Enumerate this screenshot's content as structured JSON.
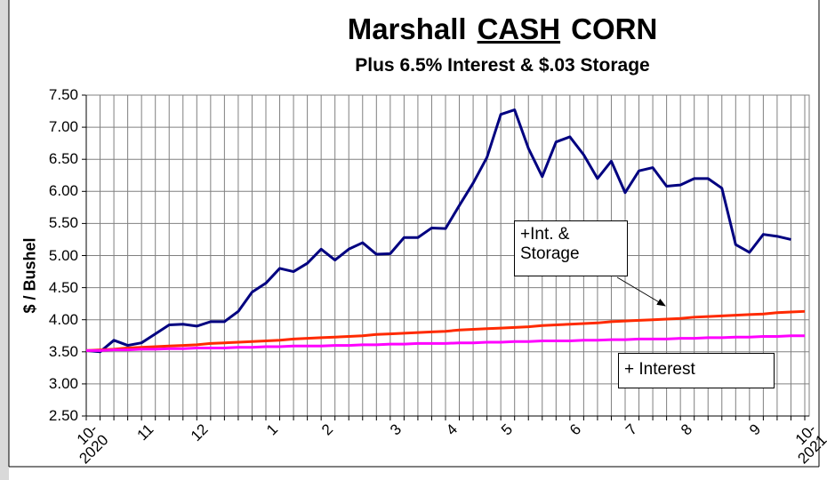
{
  "chart_data": {
    "type": "line",
    "title": [
      "Marshall",
      "CASH",
      "CORN"
    ],
    "subtitle": "Plus 6.5% Interest & $.03 Storage",
    "ylabel": "$ / Bushel",
    "annotations": [
      "+Int. &\nStorage",
      "+ Interest"
    ],
    "categories": [
      "10-\n2020",
      null,
      null,
      null,
      "11",
      null,
      null,
      null,
      "12",
      null,
      null,
      null,
      null,
      "1",
      null,
      null,
      null,
      "2",
      null,
      null,
      null,
      null,
      "3",
      null,
      null,
      null,
      "4",
      null,
      null,
      null,
      "5",
      null,
      null,
      null,
      null,
      "6",
      null,
      null,
      null,
      "7",
      null,
      null,
      null,
      "8",
      null,
      null,
      null,
      null,
      "9",
      null,
      null,
      null,
      "10-\n2021"
    ],
    "series": [
      {
        "color": "#000080",
        "values": [
          3.52,
          3.5,
          3.68,
          3.6,
          3.64,
          3.78,
          3.92,
          3.93,
          3.9,
          3.97,
          3.97,
          4.13,
          4.43,
          4.57,
          4.8,
          4.75,
          4.88,
          5.1,
          4.93,
          5.1,
          5.2,
          5.02,
          5.03,
          5.28,
          5.28,
          5.43,
          5.42,
          5.78,
          6.13,
          6.53,
          7.2,
          7.27,
          6.67,
          6.23,
          6.77,
          6.85,
          6.57,
          6.2,
          6.47,
          5.98,
          6.32,
          6.37,
          6.08,
          6.1,
          6.2,
          6.2,
          6.05,
          5.17,
          5.05,
          5.33,
          5.3,
          5.25,
          null
        ]
      },
      {
        "color": "#ff2a00",
        "values": [
          3.52,
          3.53,
          3.54,
          3.56,
          3.57,
          3.58,
          3.59,
          3.6,
          3.61,
          3.63,
          3.64,
          3.65,
          3.66,
          3.67,
          3.68,
          3.7,
          3.71,
          3.72,
          3.73,
          3.74,
          3.75,
          3.77,
          3.78,
          3.79,
          3.8,
          3.81,
          3.82,
          3.84,
          3.85,
          3.86,
          3.87,
          3.88,
          3.89,
          3.91,
          3.92,
          3.93,
          3.94,
          3.95,
          3.97,
          3.98,
          3.99,
          4.0,
          4.01,
          4.02,
          4.04,
          4.05,
          4.06,
          4.07,
          4.08,
          4.09,
          4.11,
          4.12,
          4.13
        ]
      },
      {
        "color": "#ff00ff",
        "values": [
          3.52,
          3.52,
          3.53,
          3.53,
          3.54,
          3.54,
          3.55,
          3.55,
          3.56,
          3.56,
          3.56,
          3.57,
          3.57,
          3.58,
          3.58,
          3.59,
          3.59,
          3.59,
          3.6,
          3.6,
          3.61,
          3.61,
          3.62,
          3.62,
          3.63,
          3.63,
          3.63,
          3.64,
          3.64,
          3.65,
          3.65,
          3.66,
          3.66,
          3.67,
          3.67,
          3.67,
          3.68,
          3.68,
          3.69,
          3.69,
          3.7,
          3.7,
          3.7,
          3.71,
          3.71,
          3.72,
          3.72,
          3.73,
          3.73,
          3.74,
          3.74,
          3.75,
          3.75
        ]
      }
    ],
    "ylim": [
      2.5,
      7.5
    ],
    "yticks": [
      {
        "value": 2.5,
        "label": "2.50"
      },
      {
        "value": 3,
        "label": "3.00"
      },
      {
        "value": 3.5,
        "label": "3.50"
      },
      {
        "value": 4,
        "label": "4.00"
      },
      {
        "value": 4.5,
        "label": "4.50"
      },
      {
        "value": 5,
        "label": "5.00"
      },
      {
        "value": 5.5,
        "label": "5.50"
      },
      {
        "value": 6,
        "label": "6.00"
      },
      {
        "value": 6.5,
        "label": "6.50"
      },
      {
        "value": 7,
        "label": "7.00"
      },
      {
        "value": 7.5,
        "label": "7.50"
      }
    ],
    "grid": true
  }
}
